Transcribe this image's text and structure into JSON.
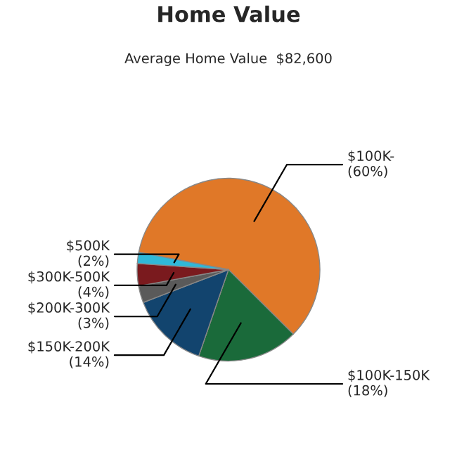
{
  "chart_data": {
    "type": "pie",
    "title": "Home Value",
    "subtitle": "Average Home Value  $82,600",
    "categories": [
      "$100K-",
      "$100K-150K",
      "$150K-200K",
      "$200K-300K",
      "$300K-500K",
      "$500K"
    ],
    "values": [
      60,
      18,
      14,
      3,
      4,
      2
    ],
    "value_labels": [
      "(60%)",
      "(18%)",
      "(14%)",
      "(3%)",
      "(4%)",
      "(2%)"
    ],
    "colors": [
      "#e07828",
      "#1a6a3a",
      "#12446e",
      "#5a5a5a",
      "#7a1a1e",
      "#30b8d8"
    ],
    "legend": false
  }
}
